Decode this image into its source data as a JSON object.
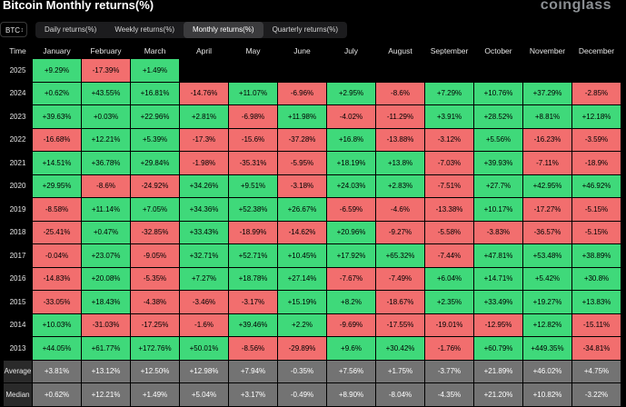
{
  "title": "Bitcoin Monthly returns(%)",
  "logo": "coinglass",
  "asset_selector": {
    "value": "BTC"
  },
  "tabs": [
    "Daily returns(%)",
    "Weekly returns(%)",
    "Monthly returns(%)",
    "Quarterly returns(%)"
  ],
  "active_tab": 2,
  "colors": {
    "positive": "#3fd97a",
    "negative": "#f26e6e",
    "summary": "#737373"
  },
  "table": {
    "header": [
      "Time",
      "January",
      "February",
      "March",
      "April",
      "May",
      "June",
      "July",
      "August",
      "September",
      "October",
      "November",
      "December"
    ],
    "rows": [
      [
        "2025",
        "+9.29%",
        "-17.39%",
        "+1.49%",
        "",
        "",
        "",
        "",
        "",
        "",
        "",
        "",
        ""
      ],
      [
        "2024",
        "+0.62%",
        "+43.55%",
        "+16.81%",
        "-14.76%",
        "+11.07%",
        "-6.96%",
        "+2.95%",
        "-8.6%",
        "+7.29%",
        "+10.76%",
        "+37.29%",
        "-2.85%"
      ],
      [
        "2023",
        "+39.63%",
        "+0.03%",
        "+22.96%",
        "+2.81%",
        "-6.98%",
        "+11.98%",
        "-4.02%",
        "-11.29%",
        "+3.91%",
        "+28.52%",
        "+8.81%",
        "+12.18%"
      ],
      [
        "2022",
        "-16.68%",
        "+12.21%",
        "+5.39%",
        "-17.3%",
        "-15.6%",
        "-37.28%",
        "+16.8%",
        "-13.88%",
        "-3.12%",
        "+5.56%",
        "-16.23%",
        "-3.59%"
      ],
      [
        "2021",
        "+14.51%",
        "+36.78%",
        "+29.84%",
        "-1.98%",
        "-35.31%",
        "-5.95%",
        "+18.19%",
        "+13.8%",
        "-7.03%",
        "+39.93%",
        "-7.11%",
        "-18.9%"
      ],
      [
        "2020",
        "+29.95%",
        "-8.6%",
        "-24.92%",
        "+34.26%",
        "+9.51%",
        "-3.18%",
        "+24.03%",
        "+2.83%",
        "-7.51%",
        "+27.7%",
        "+42.95%",
        "+46.92%"
      ],
      [
        "2019",
        "-8.58%",
        "+11.14%",
        "+7.05%",
        "+34.36%",
        "+52.38%",
        "+26.67%",
        "-6.59%",
        "-4.6%",
        "-13.38%",
        "+10.17%",
        "-17.27%",
        "-5.15%"
      ],
      [
        "2018",
        "-25.41%",
        "+0.47%",
        "-32.85%",
        "+33.43%",
        "-18.99%",
        "-14.62%",
        "+20.96%",
        "-9.27%",
        "-5.58%",
        "-3.83%",
        "-36.57%",
        "-5.15%"
      ],
      [
        "2017",
        "-0.04%",
        "+23.07%",
        "-9.05%",
        "+32.71%",
        "+52.71%",
        "+10.45%",
        "+17.92%",
        "+65.32%",
        "-7.44%",
        "+47.81%",
        "+53.48%",
        "+38.89%"
      ],
      [
        "2016",
        "-14.83%",
        "+20.08%",
        "-5.35%",
        "+7.27%",
        "+18.78%",
        "+27.14%",
        "-7.67%",
        "-7.49%",
        "+6.04%",
        "+14.71%",
        "+5.42%",
        "+30.8%"
      ],
      [
        "2015",
        "-33.05%",
        "+18.43%",
        "-4.38%",
        "-3.46%",
        "-3.17%",
        "+15.19%",
        "+8.2%",
        "-18.67%",
        "+2.35%",
        "+33.49%",
        "+19.27%",
        "+13.83%"
      ],
      [
        "2014",
        "+10.03%",
        "-31.03%",
        "-17.25%",
        "-1.6%",
        "+39.46%",
        "+2.2%",
        "-9.69%",
        "-17.55%",
        "-19.01%",
        "-12.95%",
        "+12.82%",
        "-15.11%"
      ],
      [
        "2013",
        "+44.05%",
        "+61.77%",
        "+172.76%",
        "+50.01%",
        "-8.56%",
        "-29.89%",
        "+9.6%",
        "+30.42%",
        "-1.76%",
        "+60.79%",
        "+449.35%",
        "-34.81%"
      ]
    ],
    "summary": [
      [
        "Average",
        "+3.81%",
        "+13.12%",
        "+12.50%",
        "+12.98%",
        "+7.94%",
        "-0.35%",
        "+7.56%",
        "+1.75%",
        "-3.77%",
        "+21.89%",
        "+46.02%",
        "+4.75%"
      ],
      [
        "Median",
        "+0.62%",
        "+12.21%",
        "+1.49%",
        "+5.04%",
        "+3.17%",
        "-0.49%",
        "+8.90%",
        "-8.04%",
        "-4.35%",
        "+21.20%",
        "+10.82%",
        "-3.22%"
      ]
    ]
  }
}
